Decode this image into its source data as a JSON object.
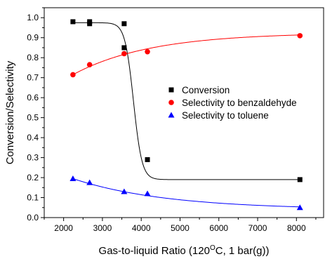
{
  "chart_data": {
    "type": "scatter",
    "xlabel": "Gas-to-liquid Ratio (120",
    "xlabel_sup": "O",
    "xlabel_tail": "C, 1 bar(g))",
    "ylabel": "Conversion/Selectivity",
    "xlim": [
      1500,
      8700
    ],
    "ylim": [
      0.0,
      1.05
    ],
    "x_ticks": [
      2000,
      3000,
      4000,
      5000,
      6000,
      7000,
      8000
    ],
    "x_tick_labels": [
      "2000",
      "3000",
      "4000",
      "5000",
      "6000",
      "7000",
      "8000"
    ],
    "y_ticks": [
      0.0,
      0.1,
      0.2,
      0.3,
      0.4,
      0.5,
      0.6,
      0.7,
      0.8,
      0.9,
      1.0
    ],
    "y_tick_labels": [
      "0.0",
      "0.1",
      "0.2",
      "0.3",
      "0.4",
      "0.5",
      "0.6",
      "0.7",
      "0.8",
      "0.9",
      "1.0"
    ],
    "grid": false,
    "legend_position": "center-right",
    "series": [
      {
        "name": "Conversion",
        "marker": "square",
        "color": "#000000",
        "fit_color": "#000000",
        "points": [
          {
            "x": 2240,
            "y": 0.98
          },
          {
            "x": 2670,
            "y": 0.98
          },
          {
            "x": 2670,
            "y": 0.97
          },
          {
            "x": 3560,
            "y": 0.97
          },
          {
            "x": 3560,
            "y": 0.85
          },
          {
            "x": 4160,
            "y": 0.29
          },
          {
            "x": 8090,
            "y": 0.19
          }
        ]
      },
      {
        "name": "Selectivity to benzaldehyde",
        "marker": "circle",
        "color": "#ff0000",
        "fit_color": "#ff0000",
        "points": [
          {
            "x": 2240,
            "y": 0.715
          },
          {
            "x": 2670,
            "y": 0.765
          },
          {
            "x": 3560,
            "y": 0.82
          },
          {
            "x": 4160,
            "y": 0.83
          },
          {
            "x": 8090,
            "y": 0.91
          }
        ]
      },
      {
        "name": "Selectivity to toluene",
        "marker": "triangle",
        "color": "#0000ff",
        "fit_color": "#0000ff",
        "points": [
          {
            "x": 2240,
            "y": 0.195
          },
          {
            "x": 2670,
            "y": 0.175
          },
          {
            "x": 3560,
            "y": 0.13
          },
          {
            "x": 4160,
            "y": 0.12
          },
          {
            "x": 8090,
            "y": 0.05
          }
        ]
      }
    ]
  }
}
